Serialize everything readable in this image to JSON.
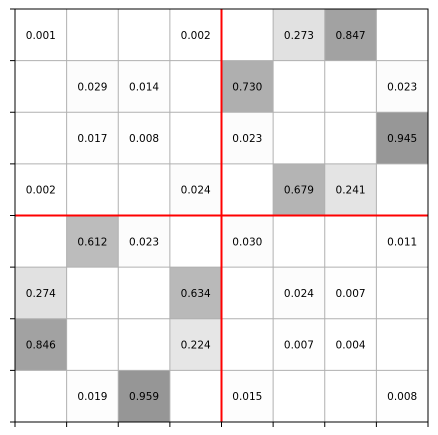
{
  "chart_data": {
    "type": "heatmap",
    "title": "",
    "xlabel": "",
    "ylabel": "",
    "n_rows": 8,
    "n_cols": 8,
    "grid": true,
    "divider_after_row": 4,
    "divider_after_col": 4,
    "divider_color": "#ff0000",
    "value_range": [
      0,
      1
    ],
    "cells": [
      {
        "row": 0,
        "col": 0,
        "value": 0.001,
        "label": "0.001"
      },
      {
        "row": 0,
        "col": 3,
        "value": 0.002,
        "label": "0.002"
      },
      {
        "row": 0,
        "col": 5,
        "value": 0.273,
        "label": "0.273"
      },
      {
        "row": 0,
        "col": 6,
        "value": 0.847,
        "label": "0.847"
      },
      {
        "row": 1,
        "col": 1,
        "value": 0.029,
        "label": "0.029"
      },
      {
        "row": 1,
        "col": 2,
        "value": 0.014,
        "label": "0.014"
      },
      {
        "row": 1,
        "col": 4,
        "value": 0.73,
        "label": "0.730"
      },
      {
        "row": 1,
        "col": 7,
        "value": 0.023,
        "label": "0.023"
      },
      {
        "row": 2,
        "col": 1,
        "value": 0.017,
        "label": "0.017"
      },
      {
        "row": 2,
        "col": 2,
        "value": 0.008,
        "label": "0.008"
      },
      {
        "row": 2,
        "col": 4,
        "value": 0.023,
        "label": "0.023"
      },
      {
        "row": 2,
        "col": 7,
        "value": 0.945,
        "label": "0.945"
      },
      {
        "row": 3,
        "col": 0,
        "value": 0.002,
        "label": "0.002"
      },
      {
        "row": 3,
        "col": 3,
        "value": 0.024,
        "label": "0.024"
      },
      {
        "row": 3,
        "col": 5,
        "value": 0.679,
        "label": "0.679"
      },
      {
        "row": 3,
        "col": 6,
        "value": 0.241,
        "label": "0.241"
      },
      {
        "row": 4,
        "col": 1,
        "value": 0.612,
        "label": "0.612"
      },
      {
        "row": 4,
        "col": 2,
        "value": 0.023,
        "label": "0.023"
      },
      {
        "row": 4,
        "col": 4,
        "value": 0.03,
        "label": "0.030"
      },
      {
        "row": 4,
        "col": 7,
        "value": 0.011,
        "label": "0.011"
      },
      {
        "row": 5,
        "col": 0,
        "value": 0.274,
        "label": "0.274"
      },
      {
        "row": 5,
        "col": 3,
        "value": 0.634,
        "label": "0.634"
      },
      {
        "row": 5,
        "col": 5,
        "value": 0.024,
        "label": "0.024"
      },
      {
        "row": 5,
        "col": 6,
        "value": 0.007,
        "label": "0.007"
      },
      {
        "row": 6,
        "col": 0,
        "value": 0.846,
        "label": "0.846"
      },
      {
        "row": 6,
        "col": 3,
        "value": 0.224,
        "label": "0.224"
      },
      {
        "row": 6,
        "col": 5,
        "value": 0.007,
        "label": "0.007"
      },
      {
        "row": 6,
        "col": 6,
        "value": 0.004,
        "label": "0.004"
      },
      {
        "row": 7,
        "col": 1,
        "value": 0.019,
        "label": "0.019"
      },
      {
        "row": 7,
        "col": 2,
        "value": 0.959,
        "label": "0.959"
      },
      {
        "row": 7,
        "col": 4,
        "value": 0.015,
        "label": "0.015"
      },
      {
        "row": 7,
        "col": 7,
        "value": 0.008,
        "label": "0.008"
      }
    ]
  }
}
